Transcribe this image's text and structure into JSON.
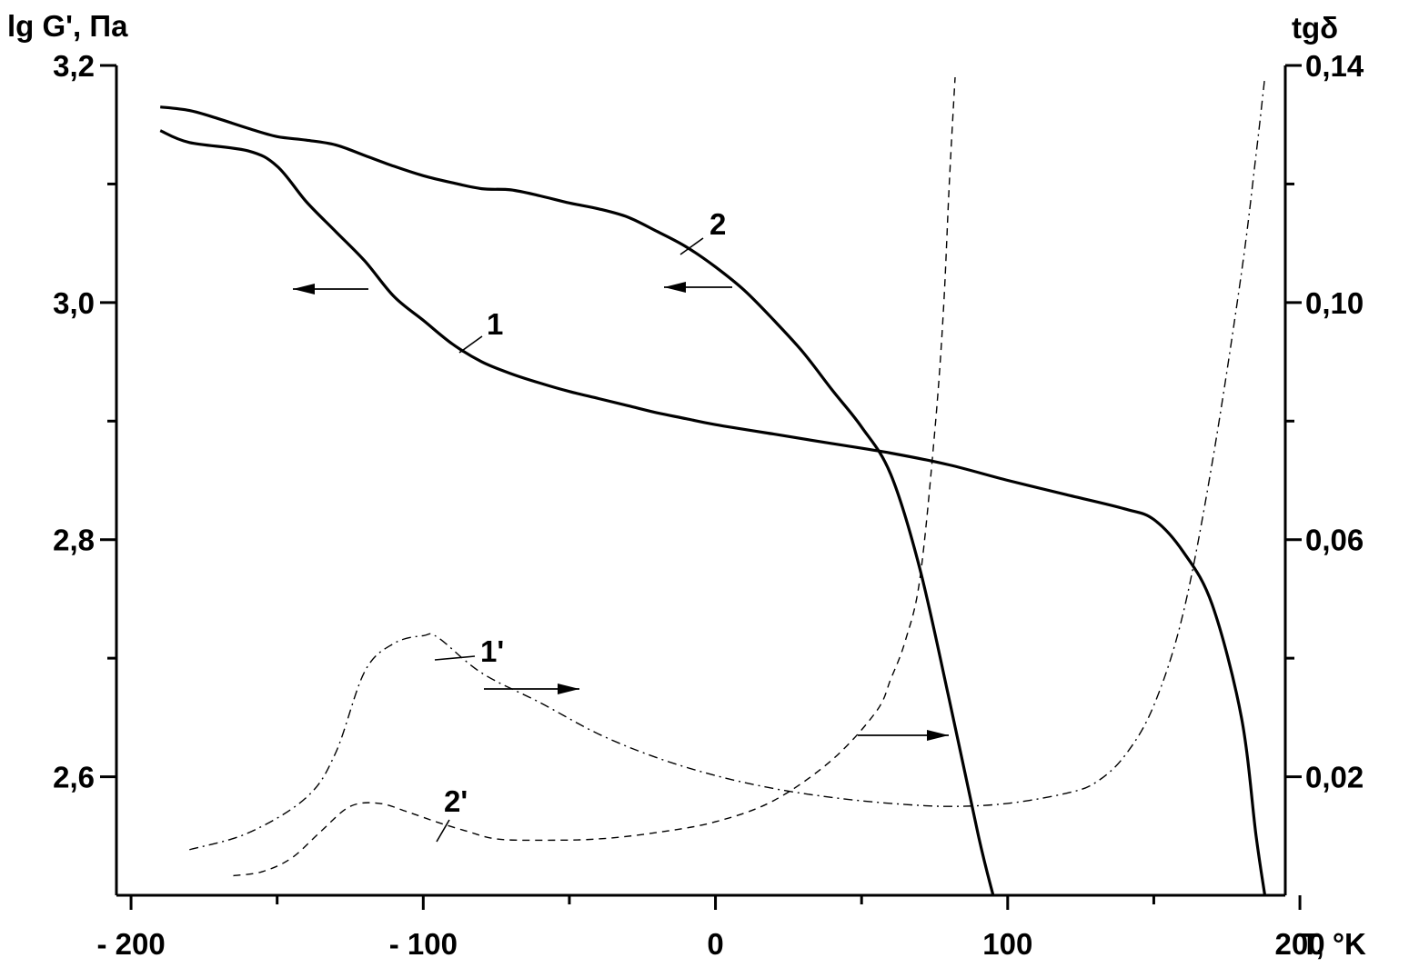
{
  "chart_data": {
    "type": "line",
    "left_axis_label": "lg G', Па",
    "right_axis_label": "tgδ",
    "x_axis_label": "T, °K",
    "xlim": [
      -205,
      195
    ],
    "ylim_left": [
      2.5,
      3.2
    ],
    "ylim_right": [
      0.0,
      0.14
    ],
    "x_ticks": [
      -200,
      -100,
      0,
      100,
      200
    ],
    "x_tick_labels": [
      "- 200",
      "- 100",
      "0",
      "100",
      "200"
    ],
    "y_left_ticks": [
      2.6,
      2.8,
      3.0,
      3.2
    ],
    "y_left_tick_labels": [
      "2,6",
      "2,8",
      "3,0",
      "3,2"
    ],
    "y_right_ticks": [
      0.02,
      0.06,
      0.1,
      0.14
    ],
    "y_right_tick_labels": [
      "0,02",
      "0,06",
      "0,10",
      "0,14"
    ],
    "series": [
      {
        "name": "1",
        "axis": "left",
        "style": "solid",
        "x": [
          -190,
          -180,
          -160,
          -150,
          -140,
          -130,
          -120,
          -110,
          -100,
          -90,
          -80,
          -70,
          -60,
          -50,
          -40,
          -30,
          -20,
          -10,
          0,
          20,
          40,
          60,
          80,
          100,
          120,
          140,
          150,
          160,
          170,
          180,
          185,
          188
        ],
        "y": [
          3.145,
          3.135,
          3.128,
          3.115,
          3.085,
          3.06,
          3.035,
          3.005,
          2.985,
          2.965,
          2.95,
          2.94,
          2.932,
          2.925,
          2.919,
          2.913,
          2.907,
          2.902,
          2.897,
          2.889,
          2.881,
          2.873,
          2.863,
          2.85,
          2.838,
          2.826,
          2.817,
          2.79,
          2.745,
          2.65,
          2.55,
          2.5
        ]
      },
      {
        "name": "2",
        "axis": "left",
        "style": "solid",
        "x": [
          -190,
          -180,
          -170,
          -160,
          -150,
          -140,
          -130,
          -120,
          -110,
          -100,
          -90,
          -80,
          -70,
          -60,
          -50,
          -40,
          -30,
          -20,
          -10,
          0,
          10,
          20,
          30,
          40,
          50,
          60,
          70,
          80,
          90,
          95
        ],
        "y": [
          3.165,
          3.162,
          3.155,
          3.147,
          3.14,
          3.137,
          3.133,
          3.124,
          3.115,
          3.107,
          3.101,
          3.096,
          3.095,
          3.09,
          3.084,
          3.079,
          3.072,
          3.06,
          3.047,
          3.03,
          3.01,
          2.985,
          2.958,
          2.926,
          2.895,
          2.855,
          2.775,
          2.665,
          2.55,
          2.5
        ]
      },
      {
        "name": "1'",
        "axis": "right",
        "style": "dashdot",
        "x": [
          -180,
          -160,
          -140,
          -130,
          -120,
          -110,
          -100,
          -95,
          -80,
          -60,
          -40,
          -20,
          0,
          20,
          40,
          60,
          80,
          100,
          120,
          130,
          140,
          150,
          160,
          170,
          180,
          185,
          188
        ],
        "y": [
          0.0077,
          0.0105,
          0.0165,
          0.024,
          0.0378,
          0.0425,
          0.0438,
          0.0435,
          0.0375,
          0.0325,
          0.0272,
          0.0232,
          0.0202,
          0.018,
          0.0165,
          0.0155,
          0.015,
          0.0155,
          0.0172,
          0.019,
          0.0235,
          0.032,
          0.0475,
          0.073,
          0.105,
          0.125,
          0.138
        ]
      },
      {
        "name": "2'",
        "axis": "right",
        "style": "dashed",
        "x": [
          -165,
          -155,
          -145,
          -135,
          -125,
          -115,
          -105,
          -95,
          -85,
          -75,
          -60,
          -40,
          -20,
          0,
          20,
          40,
          55,
          60,
          65,
          70,
          75,
          78,
          80,
          82
        ],
        "y": [
          0.0033,
          0.004,
          0.0063,
          0.0108,
          0.015,
          0.0155,
          0.014,
          0.0123,
          0.0108,
          0.0095,
          0.0093,
          0.0095,
          0.0106,
          0.0124,
          0.016,
          0.0229,
          0.031,
          0.0365,
          0.043,
          0.0535,
          0.078,
          0.0985,
          0.12,
          0.138
        ]
      }
    ]
  }
}
